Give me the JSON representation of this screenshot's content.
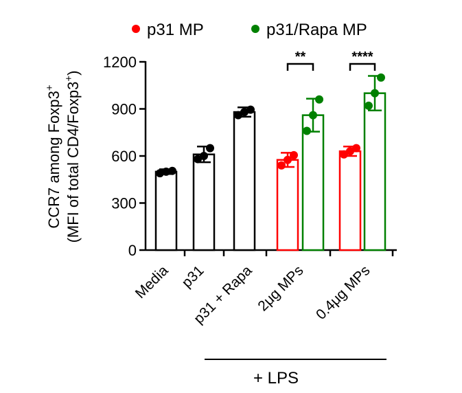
{
  "chart_data": {
    "type": "bar",
    "ylabel_line1_prefix": "CCR7 among  Foxp3",
    "ylabel_line1_sup": "+",
    "ylabel_line2_prefix": "(MFI of total CD4/Foxp3",
    "ylabel_line2_sup": "+",
    "ylabel_line2_suffix": ")",
    "ylim": [
      0,
      1200
    ],
    "yticks": [
      0,
      300,
      600,
      900,
      1200
    ],
    "legend": {
      "placement": "top",
      "entries": [
        {
          "name": "p31 MP",
          "color": "#ff0000"
        },
        {
          "name": "p31/Rapa MP",
          "color": "#008000"
        }
      ]
    },
    "categories": [
      "Media",
      "p31",
      "p31 + Rapa",
      "2μg MPs",
      "0.4μg MPs"
    ],
    "bars": [
      {
        "group": 0,
        "value": 500,
        "error": 15,
        "color": "#000000",
        "points": [
          490,
          500,
          505
        ]
      },
      {
        "group": 1,
        "value": 610,
        "error": 50,
        "color": "#000000",
        "points": [
          580,
          600,
          650
        ]
      },
      {
        "group": 2,
        "value": 880,
        "error": 30,
        "color": "#000000",
        "points": [
          860,
          880,
          895
        ]
      },
      {
        "group": 3,
        "value": 575,
        "error": 45,
        "color": "#ff0000",
        "series": "p31 MP",
        "points": [
          540,
          575,
          605
        ]
      },
      {
        "group": 3,
        "value": 860,
        "error": 105,
        "color": "#008000",
        "series": "p31/Rapa MP",
        "points": [
          760,
          860,
          960
        ]
      },
      {
        "group": 4,
        "value": 630,
        "error": 30,
        "color": "#ff0000",
        "series": "p31 MP",
        "points": [
          610,
          630,
          650
        ]
      },
      {
        "group": 4,
        "value": 1000,
        "error": 110,
        "color": "#008000",
        "series": "p31/Rapa MP",
        "points": [
          920,
          1000,
          1100
        ]
      }
    ],
    "significance": [
      {
        "group": 3,
        "label": "**"
      },
      {
        "group": 4,
        "label": "****"
      }
    ],
    "bracket_label": "+ LPS",
    "grid": false
  }
}
